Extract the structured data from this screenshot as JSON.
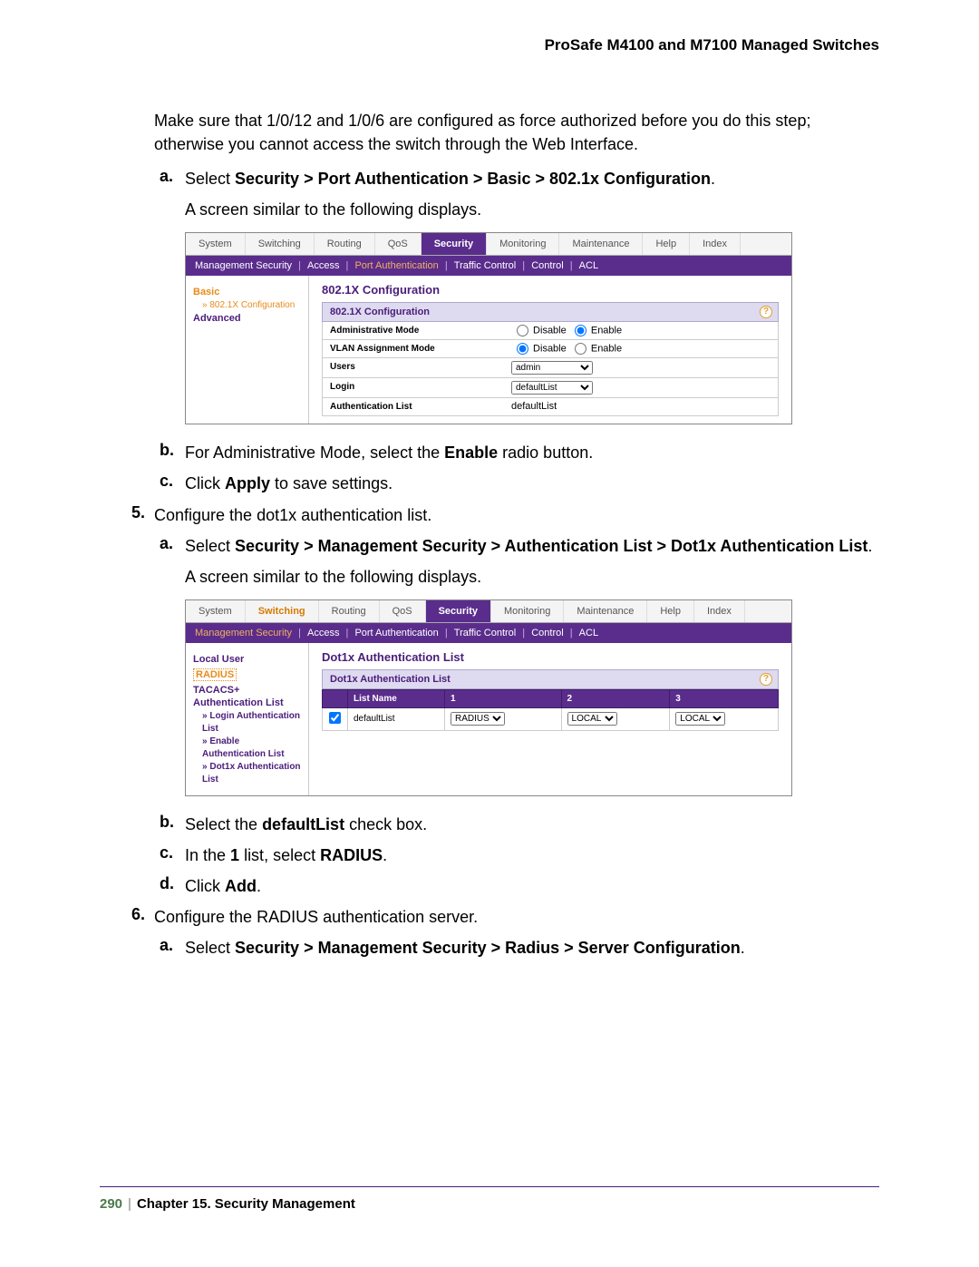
{
  "header": {
    "title": "ProSafe M4100 and M7100 Managed Switches"
  },
  "intro": "Make sure that 1/0/12 and 1/0/6 are configured as force authorized before you do this step; otherwise you cannot access the switch through the Web Interface.",
  "steps": {
    "s4a_pre": "Select ",
    "s4a_bold": "Security > Port Authentication > Basic > 802.1x Configuration",
    "s4a_post": ".",
    "s4a_sub": "A screen similar to the following displays.",
    "s4b_pre": "For Administrative Mode, select the ",
    "s4b_bold": "Enable",
    "s4b_post": " radio button.",
    "s4c_pre": "Click ",
    "s4c_bold": "Apply",
    "s4c_post": " to save settings.",
    "s5": "Configure the dot1x authentication list.",
    "s5a_pre": "Select ",
    "s5a_bold": "Security > Management Security > Authentication List > Dot1x Authentication List",
    "s5a_post": ".",
    "s5a_sub": "A screen similar to the following displays.",
    "s5b_pre": "Select the ",
    "s5b_bold": "defaultList",
    "s5b_post": " check box.",
    "s5c_pre": "In the ",
    "s5c_bold1": "1",
    "s5c_mid": " list, select ",
    "s5c_bold2": "RADIUS",
    "s5c_post": ".",
    "s5d_pre": "Click ",
    "s5d_bold": "Add",
    "s5d_post": ".",
    "s6": "Configure the RADIUS authentication server.",
    "s6a_pre": "Select ",
    "s6a_bold": "Security > Management Security > Radius > Server Configuration",
    "s6a_post": "."
  },
  "markers": {
    "a": "a.",
    "b": "b.",
    "c": "c.",
    "d": "d.",
    "n5": "5.",
    "n6": "6."
  },
  "shot1": {
    "tabs": [
      "System",
      "Switching",
      "Routing",
      "QoS",
      "Security",
      "Monitoring",
      "Maintenance",
      "Help",
      "Index"
    ],
    "active_tab": "Security",
    "subnav": [
      "Management Security",
      "Access",
      "Port Authentication",
      "Traffic Control",
      "Control",
      "ACL"
    ],
    "subnav_hl": "Port Authentication",
    "side": {
      "basic": "Basic",
      "sub": "» 802.1X Configuration",
      "advanced": "Advanced"
    },
    "panel_title": "802.1X Configuration",
    "panel_bar": "802.1X Configuration",
    "rows": [
      {
        "label": "Administrative Mode",
        "opt1": "Disable",
        "opt2": "Enable",
        "sel": 2
      },
      {
        "label": "VLAN Assignment Mode",
        "opt1": "Disable",
        "opt2": "Enable",
        "sel": 1
      }
    ],
    "users_label": "Users",
    "users_val": "admin",
    "login_label": "Login",
    "login_val": "defaultList",
    "auth_label": "Authentication List",
    "auth_val": "defaultList"
  },
  "shot2": {
    "tabs": [
      "System",
      "Switching",
      "Routing",
      "QoS",
      "Security",
      "Monitoring",
      "Maintenance",
      "Help",
      "Index"
    ],
    "active_tab": "Security",
    "orange_tab": "Switching",
    "subnav": [
      "Management Security",
      "Access",
      "Port Authentication",
      "Traffic Control",
      "Control",
      "ACL"
    ],
    "subnav_hl": "Management Security",
    "side": {
      "items": [
        "Local User",
        "RADIUS",
        "TACACS+",
        "Authentication List"
      ],
      "boxed": "RADIUS",
      "subs": [
        "Login Authentication List",
        "Enable Authentication List",
        "Dot1x Authentication List"
      ]
    },
    "panel_title": "Dot1x Authentication List",
    "panel_bar": "Dot1x Authentication List",
    "columns": [
      "",
      "List Name",
      "1",
      "2",
      "3"
    ],
    "row": {
      "checked": true,
      "name": "defaultList",
      "c1": "RADIUS",
      "c2": "LOCAL",
      "c3": "LOCAL"
    }
  },
  "footer": {
    "page": "290",
    "chapter": "Chapter 15.  Security Management"
  }
}
